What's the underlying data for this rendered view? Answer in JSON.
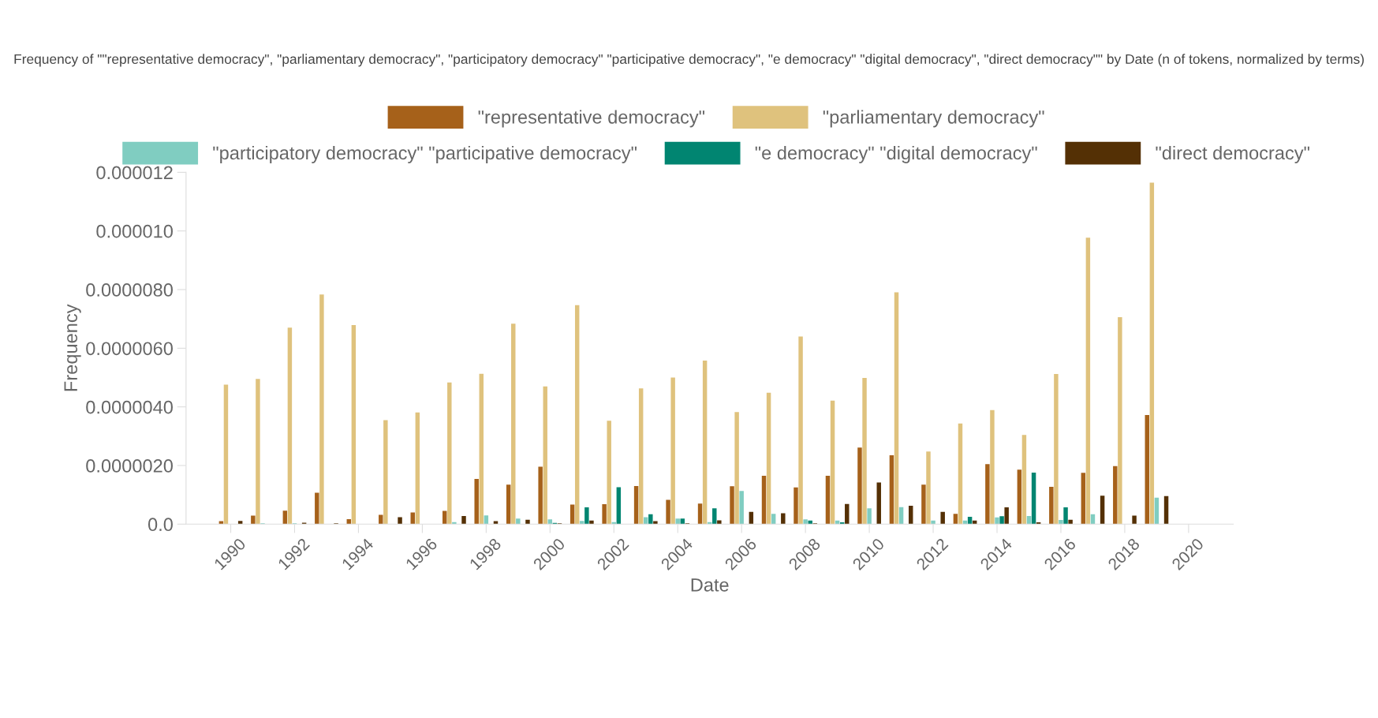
{
  "chart_data": {
    "type": "bar",
    "title": "Frequency of \"\"representative democracy\", \"parliamentary democracy\", \"participatory democracy\" \"participative democracy\", \"e democracy\" \"digital democracy\", \"direct democracy\"\" by Date (n of tokens, normalized by terms)",
    "xlabel": "Date",
    "ylabel": "Frequency",
    "x": [
      1990,
      1991,
      1992,
      1993,
      1994,
      1995,
      1996,
      1997,
      1998,
      1999,
      2000,
      2001,
      2002,
      2003,
      2004,
      2005,
      2006,
      2007,
      2008,
      2009,
      2010,
      2011,
      2012,
      2013,
      2014,
      2015,
      2016,
      2017,
      2018,
      2019
    ],
    "series": [
      {
        "name": "\"representative democracy\"",
        "color": "#a6611a",
        "values": [
          1e-07,
          2.9e-07,
          4.6e-07,
          1.07e-06,
          1.7e-07,
          3.2e-07,
          4e-07,
          4.5e-07,
          1.54e-06,
          1.35e-06,
          1.96e-06,
          6.7e-07,
          6.8e-07,
          1.3e-06,
          8.3e-07,
          7e-07,
          1.29e-06,
          1.65e-06,
          1.25e-06,
          1.65e-06,
          2.61e-06,
          2.35e-06,
          1.35e-06,
          3.5e-07,
          2.05e-06,
          1.86e-06,
          1.27e-06,
          1.75e-06,
          1.98e-06,
          3.72e-06
        ]
      },
      {
        "name": "\"parliamentary democracy\"",
        "color": "#dfc27d",
        "values": [
          4.76e-06,
          4.95e-06,
          6.7e-06,
          7.83e-06,
          6.79e-06,
          3.55e-06,
          3.81e-06,
          4.83e-06,
          5.13e-06,
          6.84e-06,
          4.7e-06,
          7.47e-06,
          3.53e-06,
          4.63e-06,
          5e-06,
          5.58e-06,
          3.82e-06,
          4.48e-06,
          6.4e-06,
          4.21e-06,
          4.99e-06,
          7.91e-06,
          2.48e-06,
          3.43e-06,
          3.89e-06,
          3.04e-06,
          5.12e-06,
          9.77e-06,
          7.06e-06,
          1.165e-05
        ]
      },
      {
        "name": "\"participatory democracy\" \"participative democracy\"",
        "color": "#80cdc1",
        "values": [
          0,
          3e-08,
          3e-08,
          null,
          null,
          null,
          0,
          7e-08,
          3e-07,
          1.9e-07,
          1.6e-07,
          1.1e-07,
          7e-08,
          2.4e-07,
          1.9e-07,
          7e-08,
          1.13e-06,
          3.5e-07,
          1.6e-07,
          1.2e-07,
          5.4e-07,
          5.8e-07,
          1.2e-07,
          1.2e-07,
          2.3e-07,
          2.8e-07,
          1.4e-07,
          3.4e-07,
          null,
          9e-07
        ]
      },
      {
        "name": "\"e democracy\" \"digital democracy\"",
        "color": "#018571",
        "values": [
          0,
          0,
          0,
          0,
          0,
          0,
          0,
          0,
          0,
          0,
          4e-08,
          5.7e-07,
          1.26e-06,
          3.4e-07,
          1.9e-07,
          5.4e-07,
          0,
          0,
          1.2e-07,
          6e-08,
          0,
          0,
          0,
          2.5e-07,
          2.7e-07,
          1.76e-06,
          5.7e-07,
          0,
          0,
          0
        ]
      },
      {
        "name": "\"direct democracy\"",
        "color": "#543005",
        "values": [
          1.1e-07,
          0,
          5e-08,
          3e-08,
          0,
          2.4e-07,
          0,
          2.8e-07,
          1e-07,
          1.5e-07,
          3e-08,
          1.2e-07,
          0,
          1e-07,
          3e-08,
          1.3e-07,
          4.2e-07,
          3.7e-07,
          3e-08,
          6.9e-07,
          1.42e-06,
          6.3e-07,
          4.2e-07,
          1.2e-07,
          5.7e-07,
          6e-08,
          1.5e-07,
          9.7e-07,
          2.9e-07,
          9.6e-07
        ]
      }
    ],
    "xlim": [
      1988.6,
      2021.4
    ],
    "xticks": [
      1990,
      1992,
      1994,
      1996,
      1998,
      2000,
      2002,
      2004,
      2006,
      2008,
      2010,
      2012,
      2014,
      2016,
      2018,
      2020
    ],
    "ylim": [
      0,
      1.2e-05
    ],
    "yticks": [
      {
        "value": 0,
        "label": "0.0"
      },
      {
        "value": 2e-06,
        "label": "0.0000020"
      },
      {
        "value": 4e-06,
        "label": "0.0000040"
      },
      {
        "value": 6e-06,
        "label": "0.0000060"
      },
      {
        "value": 8e-06,
        "label": "0.0000080"
      },
      {
        "value": 1e-05,
        "label": "0.000010"
      },
      {
        "value": 1.2e-05,
        "label": "0.000012"
      }
    ],
    "grid": false,
    "legend": "top"
  }
}
